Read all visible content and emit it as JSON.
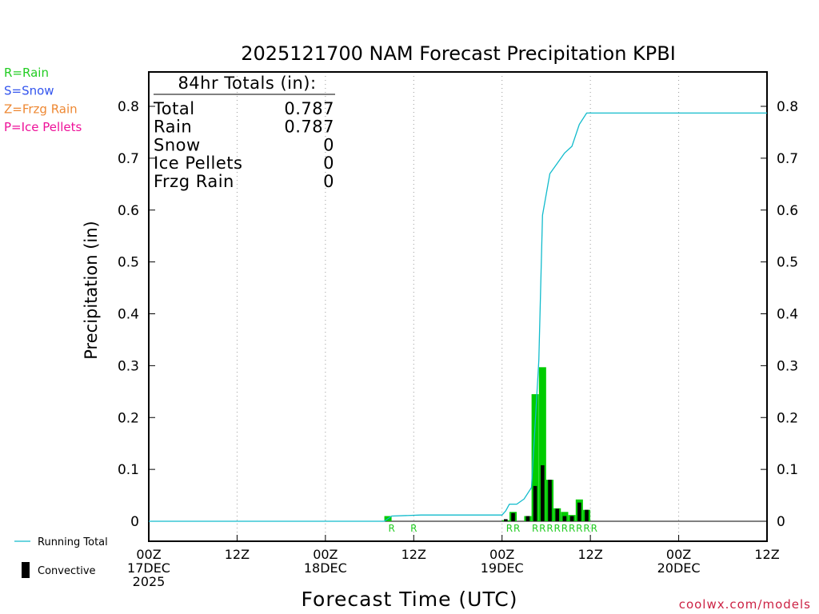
{
  "title": "2025121700 NAM Forecast Precipitation KPBI",
  "legend_left": [
    {
      "text": "R=Rain",
      "color": "#22cc22"
    },
    {
      "text": "S=Snow",
      "color": "#3355ee"
    },
    {
      "text": "Z=Frzg Rain",
      "color": "#ee8833"
    },
    {
      "text": "P=Ice Pellets",
      "color": "#ee1199"
    }
  ],
  "totals": {
    "heading": "84hr Totals (in):",
    "rows": [
      {
        "label": "Total",
        "value": "0.787"
      },
      {
        "label": "Rain",
        "value": "0.787"
      },
      {
        "label": "Snow",
        "value": "0"
      },
      {
        "label": "Ice Pellets",
        "value": "0"
      },
      {
        "label": "Frzg Rain",
        "value": "0"
      }
    ]
  },
  "bottom_legend": {
    "running_total": "Running Total",
    "convective": "Convective"
  },
  "credit": "coolwx.com/models",
  "colors": {
    "rain_bar": "#00cc00",
    "convective_bar": "#000000",
    "running_total": "#11bbcc",
    "ptype_label": "#22cc22",
    "credit": "#cc2244"
  },
  "chart_data": {
    "type": "bar",
    "title": "2025121700 NAM Forecast Precipitation KPBI",
    "xlabel": "Forecast Time (UTC)",
    "ylabel": "Precipitation (in)",
    "xlim": [
      0,
      84
    ],
    "ylim": [
      -0.04,
      0.87
    ],
    "yticks": [
      0,
      0.1,
      0.2,
      0.3,
      0.4,
      0.5,
      0.6,
      0.7,
      0.8
    ],
    "ytick_labels": [
      "0",
      "0.1",
      "0.2",
      "0.3",
      "0.4",
      "0.5",
      "0.6",
      "0.7",
      "0.8"
    ],
    "xticks": [
      {
        "hour": 0,
        "lines": [
          "00Z",
          "17DEC",
          "2025"
        ]
      },
      {
        "hour": 12,
        "lines": [
          "12Z"
        ]
      },
      {
        "hour": 24,
        "lines": [
          "00Z",
          "18DEC"
        ]
      },
      {
        "hour": 36,
        "lines": [
          "12Z"
        ]
      },
      {
        "hour": 48,
        "lines": [
          "00Z",
          "19DEC"
        ]
      },
      {
        "hour": 60,
        "lines": [
          "12Z"
        ]
      },
      {
        "hour": 72,
        "lines": [
          "00Z",
          "20DEC"
        ]
      },
      {
        "hour": 84,
        "lines": [
          "12Z"
        ]
      }
    ],
    "grid": "dotted vertical at 12h intervals",
    "bar_width_hours": 1,
    "series": [
      {
        "name": "Rain",
        "kind": "bar",
        "points": [
          {
            "hour": 33,
            "value": 0.01
          },
          {
            "hour": 49,
            "value": 0.002
          },
          {
            "hour": 50,
            "value": 0.018
          },
          {
            "hour": 52,
            "value": 0.01
          },
          {
            "hour": 53,
            "value": 0.245
          },
          {
            "hour": 54,
            "value": 0.297
          },
          {
            "hour": 55,
            "value": 0.08
          },
          {
            "hour": 56,
            "value": 0.025
          },
          {
            "hour": 57,
            "value": 0.018
          },
          {
            "hour": 58,
            "value": 0.012
          },
          {
            "hour": 59,
            "value": 0.042
          },
          {
            "hour": 60,
            "value": 0.022
          }
        ]
      },
      {
        "name": "Convective",
        "kind": "bar",
        "points": [
          {
            "hour": 49,
            "value": 0.004
          },
          {
            "hour": 50,
            "value": 0.016
          },
          {
            "hour": 52,
            "value": 0.01
          },
          {
            "hour": 53,
            "value": 0.068
          },
          {
            "hour": 54,
            "value": 0.108
          },
          {
            "hour": 55,
            "value": 0.08
          },
          {
            "hour": 56,
            "value": 0.024
          },
          {
            "hour": 57,
            "value": 0.01
          },
          {
            "hour": 58,
            "value": 0.01
          },
          {
            "hour": 59,
            "value": 0.036
          },
          {
            "hour": 60,
            "value": 0.022
          }
        ]
      },
      {
        "name": "Running Total",
        "kind": "line",
        "points": [
          {
            "hour": 0,
            "value": 0
          },
          {
            "hour": 32,
            "value": 0
          },
          {
            "hour": 33,
            "value": 0.01
          },
          {
            "hour": 37,
            "value": 0.012
          },
          {
            "hour": 48,
            "value": 0.012
          },
          {
            "hour": 48.5,
            "value": 0.02
          },
          {
            "hour": 49,
            "value": 0.033
          },
          {
            "hour": 50,
            "value": 0.033
          },
          {
            "hour": 51,
            "value": 0.043
          },
          {
            "hour": 52,
            "value": 0.065
          },
          {
            "hour": 53,
            "value": 0.31
          },
          {
            "hour": 53.5,
            "value": 0.59
          },
          {
            "hour": 54.5,
            "value": 0.67
          },
          {
            "hour": 55.5,
            "value": 0.69
          },
          {
            "hour": 56.5,
            "value": 0.71
          },
          {
            "hour": 57.5,
            "value": 0.723
          },
          {
            "hour": 58.5,
            "value": 0.765
          },
          {
            "hour": 59.5,
            "value": 0.787
          },
          {
            "hour": 84,
            "value": 0.787
          }
        ]
      }
    ],
    "ptype_marks": [
      {
        "hour": 33,
        "label": "R"
      },
      {
        "hour": 36,
        "label": "R"
      },
      {
        "hour": 49,
        "label": "R"
      },
      {
        "hour": 50,
        "label": "R"
      },
      {
        "hour": 52.5,
        "label": "R"
      },
      {
        "hour": 53.5,
        "label": "R"
      },
      {
        "hour": 54.5,
        "label": "R"
      },
      {
        "hour": 55.5,
        "label": "R"
      },
      {
        "hour": 56.5,
        "label": "R"
      },
      {
        "hour": 57.5,
        "label": "R"
      },
      {
        "hour": 58.5,
        "label": "R"
      },
      {
        "hour": 59.5,
        "label": "R"
      },
      {
        "hour": 60.5,
        "label": "R"
      }
    ]
  }
}
